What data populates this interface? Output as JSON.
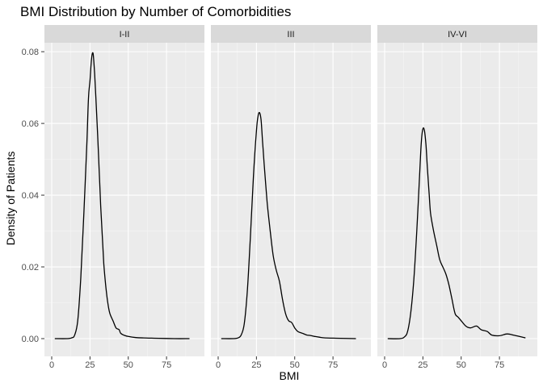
{
  "chart_data": {
    "type": "line",
    "title": "BMI Distribution by Number of Comorbidities",
    "xlabel": "BMI",
    "ylabel": "Density of Patients",
    "xlim": [
      0,
      95
    ],
    "ylim": [
      0,
      0.08
    ],
    "x_ticks": [
      "0",
      "25",
      "50",
      "75"
    ],
    "y_ticks": [
      "0.00",
      "0.02",
      "0.04",
      "0.06",
      "0.08"
    ],
    "grid": true,
    "legend": "none",
    "line_color": "#000000",
    "panel_background": "#ebebeb",
    "strip_background": "#d9d9d9",
    "panels": [
      {
        "name": "I-II",
        "x": [
          2,
          10,
          13,
          15,
          17,
          19,
          21,
          23,
          24,
          25,
          26,
          27,
          28,
          29,
          30,
          31,
          32,
          33,
          34,
          35,
          36,
          37,
          38,
          40,
          42,
          44,
          45,
          47,
          50,
          55,
          60,
          70,
          80,
          90
        ],
        "y": [
          0.0,
          0.0,
          0.0002,
          0.001,
          0.005,
          0.017,
          0.035,
          0.055,
          0.067,
          0.072,
          0.078,
          0.0795,
          0.074,
          0.066,
          0.057,
          0.047,
          0.037,
          0.029,
          0.021,
          0.016,
          0.012,
          0.009,
          0.007,
          0.005,
          0.003,
          0.0025,
          0.0015,
          0.001,
          0.0006,
          0.0003,
          0.0002,
          0.0001,
          0.0,
          0.0
        ]
      },
      {
        "name": "III",
        "x": [
          2,
          10,
          13,
          15,
          17,
          19,
          21,
          23,
          25,
          26,
          27,
          28,
          29,
          30,
          32,
          34,
          36,
          38,
          40,
          42,
          44,
          46,
          48,
          50,
          52,
          55,
          58,
          60,
          63,
          66,
          70,
          80,
          90
        ],
        "y": [
          0.0,
          0.0,
          0.0002,
          0.001,
          0.004,
          0.013,
          0.028,
          0.045,
          0.058,
          0.062,
          0.063,
          0.061,
          0.055,
          0.049,
          0.038,
          0.03,
          0.023,
          0.019,
          0.016,
          0.011,
          0.007,
          0.005,
          0.0045,
          0.003,
          0.002,
          0.0015,
          0.001,
          0.0009,
          0.0006,
          0.0004,
          0.0002,
          0.0001,
          0.0
        ]
      },
      {
        "name": "IV-VI",
        "x": [
          2,
          10,
          13,
          15,
          17,
          19,
          21,
          23,
          24,
          25,
          26,
          27,
          28,
          29,
          30,
          32,
          34,
          36,
          38,
          40,
          42,
          44,
          46,
          48,
          50,
          53,
          56,
          60,
          63,
          67,
          70,
          75,
          80,
          85,
          92
        ],
        "y": [
          0.0,
          0.0,
          0.0005,
          0.002,
          0.007,
          0.016,
          0.03,
          0.047,
          0.055,
          0.0585,
          0.058,
          0.054,
          0.047,
          0.041,
          0.035,
          0.03,
          0.026,
          0.022,
          0.02,
          0.018,
          0.015,
          0.011,
          0.007,
          0.006,
          0.005,
          0.0035,
          0.003,
          0.0035,
          0.0025,
          0.002,
          0.001,
          0.0008,
          0.0013,
          0.0009,
          0.0002
        ]
      }
    ]
  }
}
